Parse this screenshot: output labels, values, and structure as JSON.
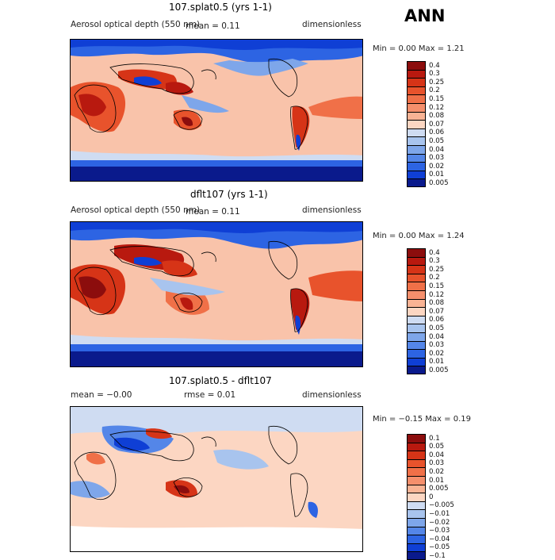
{
  "season_label": "ANN",
  "panels": [
    {
      "title": "107.splat0.5 (yrs 1-1)",
      "left_text": "Aerosol optical depth (550 nm)",
      "mid_text": "mean =     0.11",
      "right_text": "dimensionless",
      "minmax": "Min =     0.00  Max =     1.21"
    },
    {
      "title": "dflt107 (yrs 1-1)",
      "left_text": "Aerosol optical depth (550 nm)",
      "mid_text": "mean =     0.11",
      "right_text": "dimensionless",
      "minmax": "Min =     0.00  Max =     1.24"
    },
    {
      "title": "107.splat0.5 - dflt107",
      "left_text": "mean =   −0.00",
      "mid_text": "rmse =     0.01",
      "right_text": "dimensionless",
      "minmax": "Min =   −0.15  Max =     0.19"
    }
  ],
  "chart_data": [
    {
      "type": "heatmap",
      "title": "107.splat0.5 (yrs 1-1)",
      "variable": "Aerosol optical depth (550 nm)",
      "units": "dimensionless",
      "mean": 0.11,
      "min": 0.0,
      "max": 1.21,
      "colorbar_levels": [
        "0.4",
        "0.3",
        "0.25",
        "0.2",
        "0.15",
        "0.12",
        "0.08",
        "0.07",
        "0.06",
        "0.05",
        "0.04",
        "0.03",
        "0.02",
        "0.01",
        "0.005"
      ],
      "colorbar_colors": [
        "#8c0d0d",
        "#b8190f",
        "#d63417",
        "#e8532c",
        "#f07048",
        "#f58f6c",
        "#f9b394",
        "#fcd6c2",
        "#cfdcf2",
        "#a8c4ee",
        "#7ea6ea",
        "#5486e8",
        "#2d64e3",
        "#0f3fd5",
        "#0a1a8c"
      ]
    },
    {
      "type": "heatmap",
      "title": "dflt107 (yrs 1-1)",
      "variable": "Aerosol optical depth (550 nm)",
      "units": "dimensionless",
      "mean": 0.11,
      "min": 0.0,
      "max": 1.24,
      "colorbar_levels": [
        "0.4",
        "0.3",
        "0.25",
        "0.2",
        "0.15",
        "0.12",
        "0.08",
        "0.07",
        "0.06",
        "0.05",
        "0.04",
        "0.03",
        "0.02",
        "0.01",
        "0.005"
      ],
      "colorbar_colors": [
        "#8c0d0d",
        "#b8190f",
        "#d63417",
        "#e8532c",
        "#f07048",
        "#f58f6c",
        "#f9b394",
        "#fcd6c2",
        "#cfdcf2",
        "#a8c4ee",
        "#7ea6ea",
        "#5486e8",
        "#2d64e3",
        "#0f3fd5",
        "#0a1a8c"
      ]
    },
    {
      "type": "heatmap",
      "title": "107.splat0.5 - dflt107",
      "units": "dimensionless",
      "mean": -0.0,
      "rmse": 0.01,
      "min": -0.15,
      "max": 0.19,
      "colorbar_levels": [
        "0.1",
        "0.05",
        "0.04",
        "0.03",
        "0.02",
        "0.01",
        "0.005",
        "0",
        "−0.005",
        "−0.01",
        "−0.02",
        "−0.03",
        "−0.04",
        "−0.05",
        "−0.1"
      ],
      "colorbar_colors": [
        "#8c0d0d",
        "#b8190f",
        "#d63417",
        "#e8532c",
        "#f07048",
        "#f58f6c",
        "#f9b394",
        "#fcd6c2",
        "#cfdcf2",
        "#a8c4ee",
        "#7ea6ea",
        "#5486e8",
        "#2d64e3",
        "#0f3fd5",
        "#0a1a8c"
      ]
    }
  ]
}
